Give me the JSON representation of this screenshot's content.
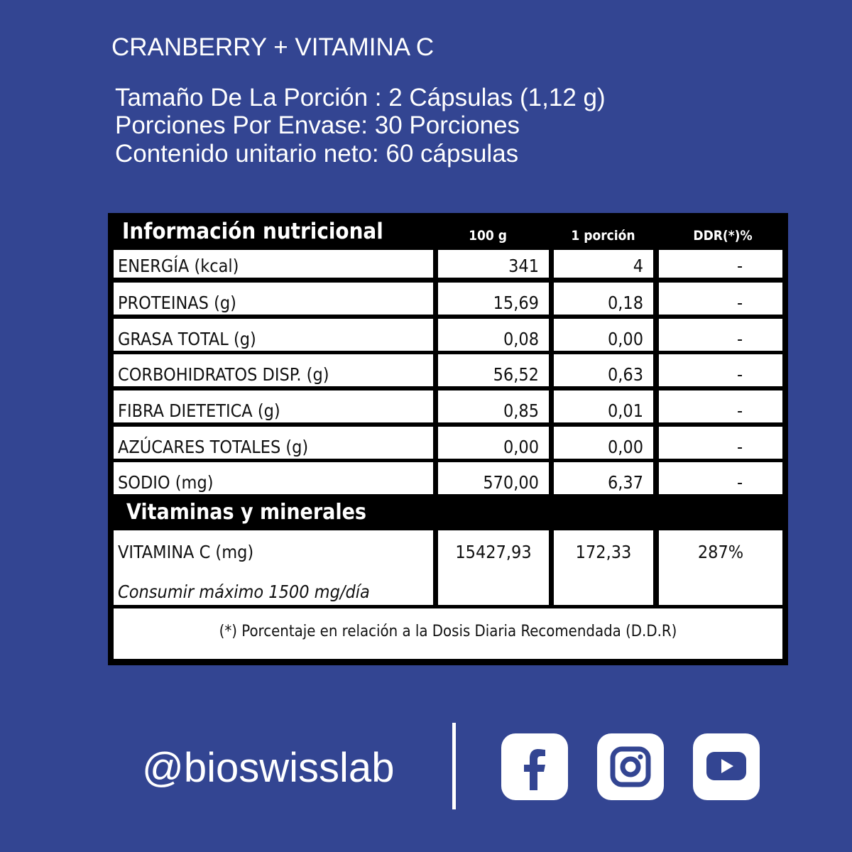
{
  "header": {
    "title": "CRANBERRY + VITAMINA C",
    "lines": [
      "Tamaño De La Porción : 2 Cápsulas (1,12 g)",
      "Porciones Por Envase: 30 Porciones",
      "Contenido unitario neto: 60 cápsulas"
    ]
  },
  "table": {
    "title": "Información nutricional",
    "columns": [
      "100 g",
      "1 porción",
      "DDR(*)%"
    ],
    "rows": [
      [
        "ENERGÍA (kcal)",
        "341",
        "4",
        "-"
      ],
      [
        "PROTEINAS (g)",
        "15,69",
        "0,18",
        "-"
      ],
      [
        "GRASA TOTAL (g)",
        "0,08",
        "0,00",
        "-"
      ],
      [
        "CORBOHIDRATOS DISP. (g)",
        "56,52",
        "0,63",
        "-"
      ],
      [
        "FIBRA DIETETICA (g)",
        "0,85",
        "0,01",
        "-"
      ],
      [
        "AZÚCARES TOTALES (g)",
        "0,00",
        "0,00",
        "-"
      ],
      [
        "SODIO (mg)",
        "570,00",
        "6,37",
        "-"
      ]
    ],
    "section": "Vitaminas y minerales",
    "vitamin_row": [
      "VITAMINA C (mg)",
      "15427,93",
      "172,33",
      "287%"
    ],
    "vitamin_note": "Consumir máximo 1500 mg/día",
    "footnote": "(*) Porcentaje en relación a la Dosis Diaria Recomendada (D.D.R)"
  },
  "footer": {
    "handle": "@bioswisslab"
  }
}
